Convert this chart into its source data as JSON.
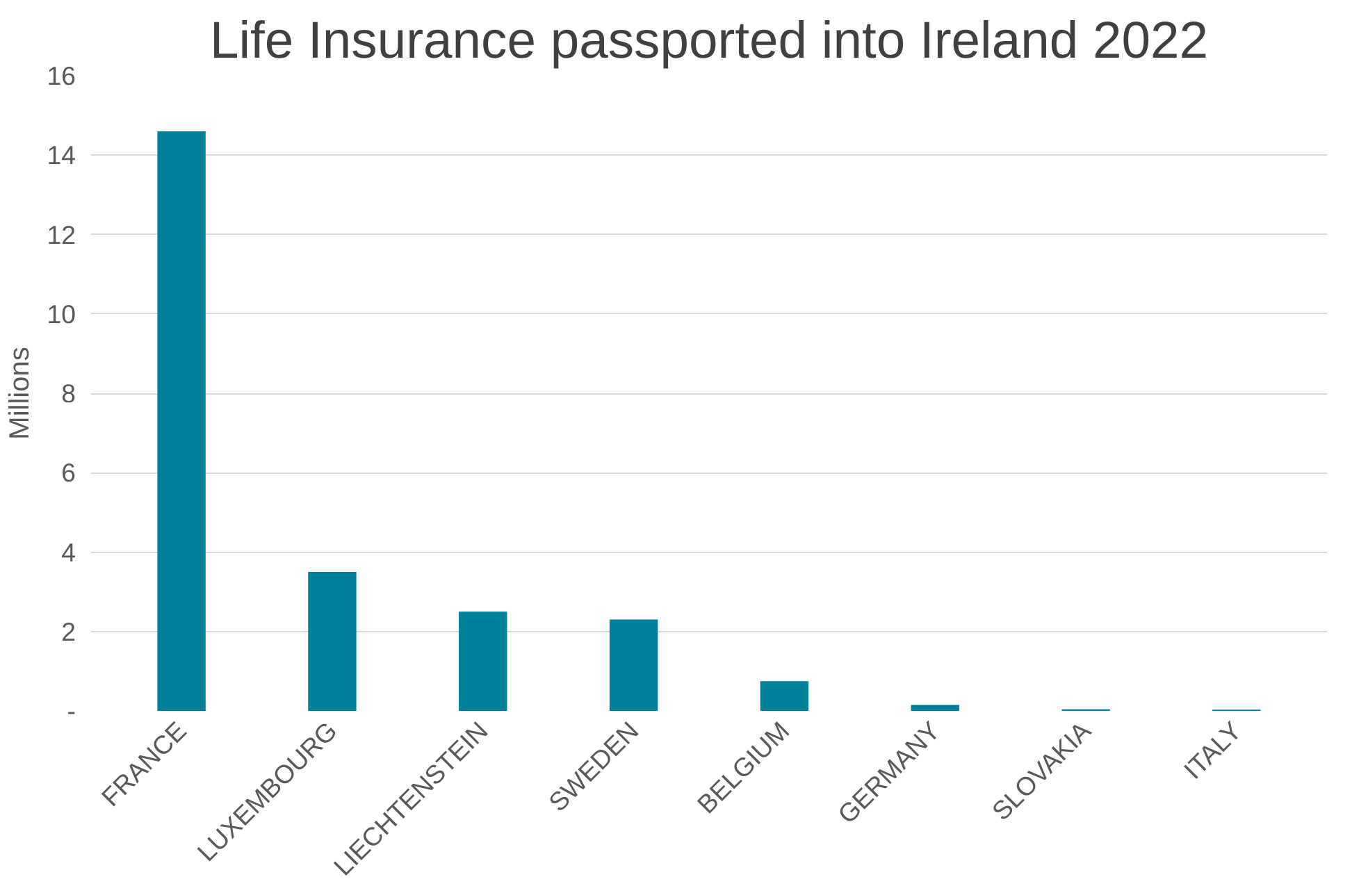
{
  "chart_data": {
    "type": "bar",
    "title": "Life Insurance passported into Ireland 2022",
    "ylabel": "Millions",
    "categories": [
      "FRANCE",
      "LUXEMBOURG",
      "LIECHTENSTEIN",
      "SWEDEN",
      "BELGIUM",
      "GERMANY",
      "SLOVAKIA",
      "ITALY"
    ],
    "values": [
      14.6,
      3.5,
      2.5,
      2.3,
      0.75,
      0.15,
      0.04,
      0.03
    ],
    "color": "#00819b",
    "ylim": [
      0,
      16
    ],
    "yticks": [
      {
        "value": 0,
        "label": "-"
      },
      2,
      4,
      6,
      8,
      10,
      12,
      14,
      16
    ],
    "grid": "y"
  }
}
